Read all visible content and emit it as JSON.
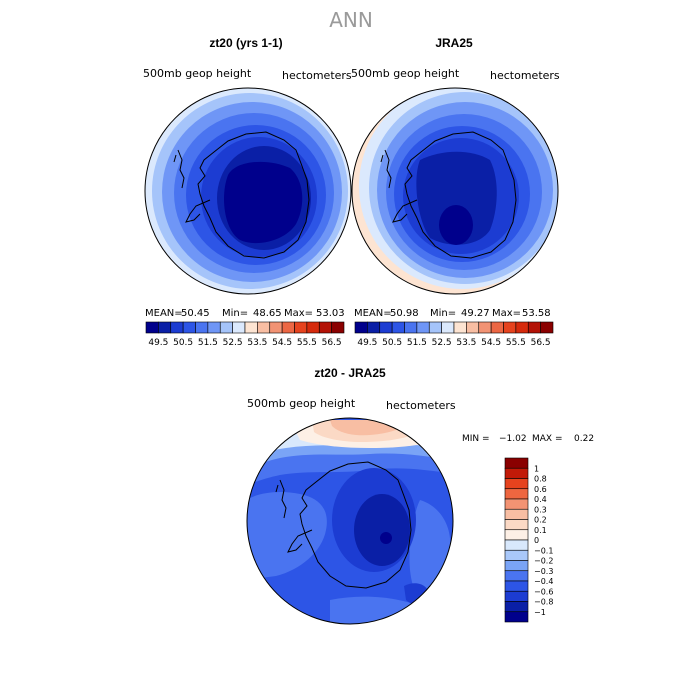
{
  "title": "ANN",
  "panels": [
    {
      "title": "zt20 (yrs 1-1)",
      "left_label": "500mb  geop  height",
      "right_label": "hectometers",
      "stats": {
        "mean_label": "MEAN=",
        "mean": "50.45",
        "min_label": "Min=",
        "min": "48.65",
        "max_label": "Max=",
        "max": "53.03"
      }
    },
    {
      "title": "JRA25",
      "left_label": "500mb  geop  height",
      "right_label": "hectometers",
      "stats": {
        "mean_label": "MEAN=",
        "mean": "50.98",
        "min_label": "Min=",
        "min": "49.27",
        "max_label": "Max=",
        "max": "53.58"
      }
    },
    {
      "title": "zt20 - JRA25",
      "left_label": "500mb  geop  height",
      "right_label": "hectometers",
      "minmax": {
        "min_label": "MIN =",
        "min": "−1.02",
        "max_label": "MAX =",
        "max": "0.22"
      }
    }
  ],
  "colorbar_abs": {
    "ticks": [
      "49.5",
      "50.5",
      "51.5",
      "52.5",
      "53.5",
      "54.5",
      "55.5",
      "56.5"
    ],
    "colors": [
      "#00008c",
      "#0a1fa6",
      "#1c3cd2",
      "#2d55e6",
      "#4a74f0",
      "#6f96f6",
      "#a5c4fa",
      "#dbe9fd",
      "#fde4d2",
      "#f8bea3",
      "#f29374",
      "#ec6744",
      "#e6431e",
      "#d62a0c",
      "#b31206",
      "#8a0000"
    ]
  },
  "colorbar_diff": {
    "labels": [
      "1",
      "0.8",
      "0.6",
      "0.4",
      "0.3",
      "0.2",
      "0.1",
      "0",
      "−0.1",
      "−0.2",
      "−0.3",
      "−0.4",
      "−0.6",
      "−0.8",
      "−1"
    ],
    "colors": [
      "#8a0000",
      "#c21a08",
      "#e6431e",
      "#ee6640",
      "#f39373",
      "#f8bea3",
      "#fbd9c5",
      "#fdf0e6",
      "#d8e8fc",
      "#a9c8fa",
      "#7aa4f6",
      "#4a74f0",
      "#2d55e6",
      "#1c3cd2",
      "#0a1fa6",
      "#00008c"
    ]
  },
  "chart_data": {
    "type": "heatmap",
    "title": "ANN",
    "panels": [
      {
        "title": "zt20 (yrs 1-1)",
        "variable": "500mb geop height",
        "units": "hectometers",
        "mean": 50.45,
        "min": 48.65,
        "max": 53.03
      },
      {
        "title": "JRA25",
        "variable": "500mb geop height",
        "units": "hectometers",
        "mean": 50.98,
        "min": 49.27,
        "max": 53.58
      },
      {
        "title": "zt20 - JRA25",
        "variable": "500mb geop height",
        "units": "hectometers",
        "min": -1.02,
        "max": 0.22
      }
    ],
    "colorbar_levels": [
      49.5,
      50.5,
      51.5,
      52.5,
      53.5,
      54.5,
      55.5,
      56.5
    ],
    "diff_levels": [
      -1,
      -0.8,
      -0.6,
      -0.4,
      -0.3,
      -0.2,
      -0.1,
      0,
      0.1,
      0.2,
      0.3,
      0.4,
      0.6,
      0.8,
      1
    ]
  }
}
